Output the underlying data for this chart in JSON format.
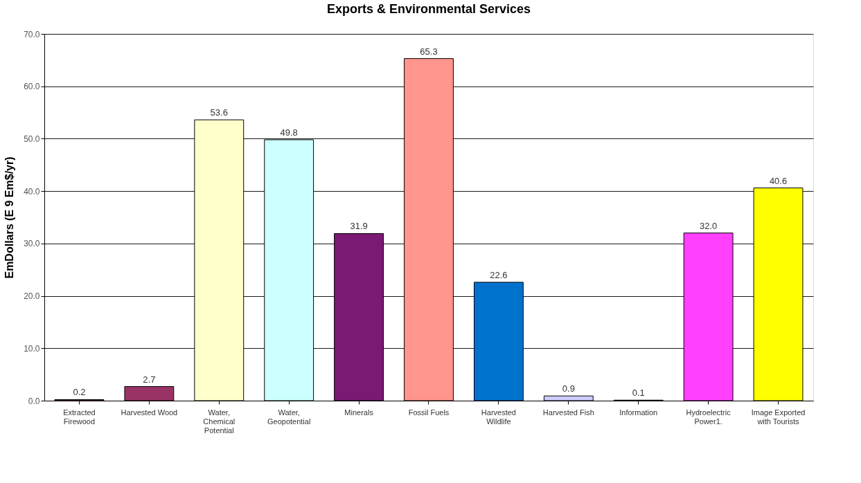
{
  "chart_data": {
    "type": "bar",
    "title": "Exports & Environmental Services",
    "ylabel": "EmDollars (E 9 Em$/yr)",
    "categories": [
      "Extracted Firewood",
      "Harvested Wood",
      "Water, Chemical Potential",
      "Water, Geopotential",
      "Minerals",
      "Fossil Fuels",
      "Harvested Wildlife",
      "Harvested Fish",
      "Information",
      "Hydroelectric Power1.",
      "Image Exported with Tourists"
    ],
    "values": [
      0.2,
      2.7,
      53.6,
      49.8,
      31.9,
      65.3,
      22.6,
      0.9,
      0.1,
      32.0,
      40.6
    ],
    "colors": [
      "#800040",
      "#993366",
      "#ffffcc",
      "#ccffff",
      "#7a1a73",
      "#ff958d",
      "#0072cc",
      "#ccccff",
      "#800000",
      "#ff40ff",
      "#ffff00"
    ],
    "ylim": [
      0,
      70
    ],
    "yticks": [
      {
        "value": 0,
        "label": "0.0"
      },
      {
        "value": 10,
        "label": "10.0"
      },
      {
        "value": 20,
        "label": "20.0"
      },
      {
        "value": 30,
        "label": "30.0"
      },
      {
        "value": 40,
        "label": "40.0"
      },
      {
        "value": 50,
        "label": "50.0"
      },
      {
        "value": 60,
        "label": "60.0"
      },
      {
        "value": 70,
        "label": "70.0"
      }
    ],
    "value_labels": [
      "0.2",
      "2.7",
      "53.6",
      "49.8",
      "31.9",
      "65.3",
      "22.6",
      "0.9",
      "0.1",
      "32.0",
      "40.6"
    ],
    "grid": "y"
  }
}
